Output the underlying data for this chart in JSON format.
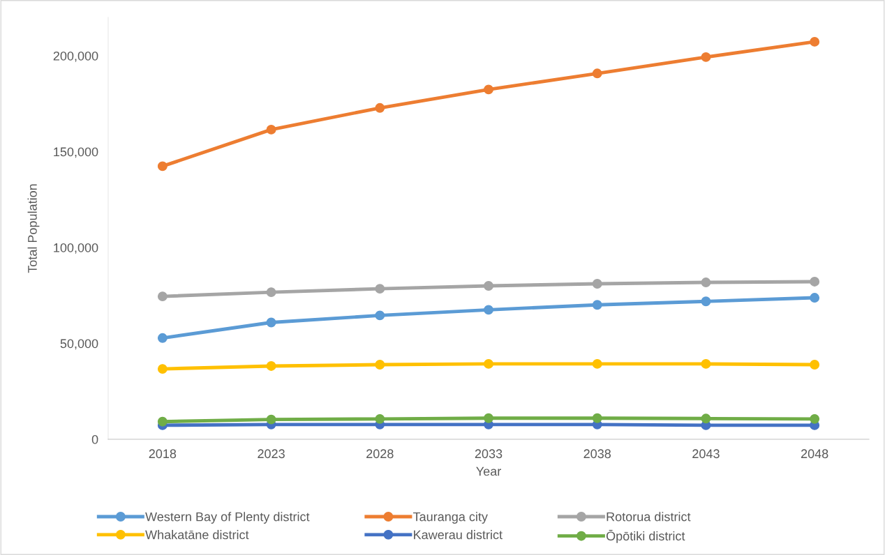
{
  "chart_data": {
    "type": "line",
    "xlabel": "Year",
    "ylabel": "Total Population",
    "categories": [
      "2018",
      "2023",
      "2028",
      "2033",
      "2038",
      "2043",
      "2048"
    ],
    "series": [
      {
        "name": "Western Bay of Plenty district",
        "color": "#5b9bd5",
        "values": [
          52800,
          60900,
          64600,
          67500,
          70100,
          71900,
          73800
        ]
      },
      {
        "name": "Tauranga city",
        "color": "#ed7d31",
        "values": [
          142400,
          161500,
          172800,
          182400,
          190800,
          199300,
          207300
        ]
      },
      {
        "name": "Rotorua district",
        "color": "#a5a5a5",
        "values": [
          74500,
          76700,
          78500,
          80000,
          81100,
          81800,
          82200
        ]
      },
      {
        "name": "Whakatāne district",
        "color": "#ffc000",
        "values": [
          36700,
          38200,
          38900,
          39300,
          39300,
          39300,
          38900
        ]
      },
      {
        "name": "Kawerau district",
        "color": "#4472c4",
        "values": [
          7300,
          7700,
          7700,
          7700,
          7700,
          7300,
          7300
        ]
      },
      {
        "name": "Ōpōtiki district",
        "color": "#70ad47",
        "values": [
          9200,
          10300,
          10600,
          11000,
          11000,
          10800,
          10600
        ]
      }
    ],
    "ylim": [
      0,
      220000
    ],
    "yticks": [
      {
        "value": 0,
        "label": "0"
      },
      {
        "value": 50000,
        "label": "50,000"
      },
      {
        "value": 100000,
        "label": "100,000"
      },
      {
        "value": 150000,
        "label": "150,000"
      },
      {
        "value": 200000,
        "label": "200,000"
      }
    ],
    "grid": false,
    "legend": "bottom",
    "marker": "circle",
    "line_style": "solid"
  }
}
